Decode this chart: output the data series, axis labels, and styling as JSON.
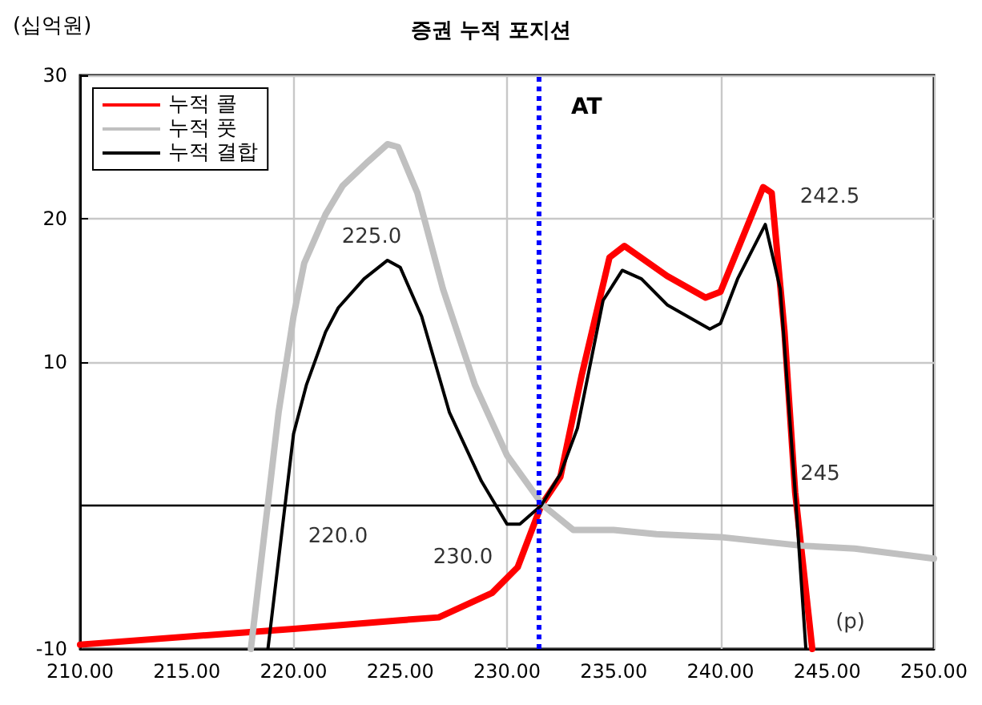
{
  "chart_data": {
    "type": "line",
    "title": "증권 누적 포지션",
    "xlabel": "(p)",
    "ylabel": "(십억원)",
    "series": [
      {
        "name": "누적 콜",
        "color": "#ff0000",
        "x": [
          210,
          220,
          225,
          226.8,
          229.3,
          230.5,
          231.6,
          232.5,
          233.5,
          234.8,
          235.5,
          237.5,
          239.3,
          240,
          242,
          242.4,
          243,
          243.5,
          244.3
        ],
        "values": [
          -9.7,
          -8.6,
          -8,
          -7.8,
          -6.1,
          -4.3,
          0,
          2,
          9.1,
          17.3,
          18.1,
          16,
          14.5,
          14.9,
          22.2,
          21.8,
          12.1,
          0.9,
          -10
        ]
      },
      {
        "name": "누적 풋",
        "color": "#c0c0c0",
        "x": [
          218,
          219.3,
          220,
          220.5,
          221.5,
          222.3,
          223.5,
          224.4,
          224.9,
          225.8,
          227,
          228.5,
          230,
          231.5,
          231.7,
          233.1,
          235,
          237,
          240,
          243.8,
          246.3,
          250
        ],
        "values": [
          -10,
          6.5,
          13.2,
          16.9,
          20.3,
          22.3,
          24,
          25.2,
          25,
          21.8,
          15.1,
          8.4,
          3.5,
          0.4,
          0,
          -1.7,
          -1.7,
          -2,
          -2.2,
          -2.8,
          -3,
          -3.7
        ]
      },
      {
        "name": "누적 결합",
        "color": "#000000",
        "x": [
          218.8,
          220,
          220.6,
          221.5,
          222.1,
          223.3,
          224.4,
          225,
          226,
          227.3,
          228.8,
          230,
          230.6,
          231.6,
          232.5,
          233.3,
          234.5,
          235.4,
          236.3,
          237.5,
          239.5,
          240,
          240.8,
          242.1,
          242.8,
          243.5,
          244
        ],
        "values": [
          -10,
          5,
          8.4,
          12.1,
          13.8,
          15.8,
          17.1,
          16.6,
          13.2,
          6.5,
          1.7,
          -1.3,
          -1.3,
          0,
          2.2,
          5.4,
          14.3,
          16.4,
          15.8,
          14,
          12.3,
          12.7,
          15.8,
          19.6,
          15.1,
          0.9,
          -10
        ]
      }
    ],
    "xlim": [
      210,
      250
    ],
    "ylim": [
      -10,
      30
    ],
    "xticks": [
      {
        "value": 210,
        "label": "210.00"
      },
      {
        "value": 215,
        "label": "215.00"
      },
      {
        "value": 220,
        "label": "220.00"
      },
      {
        "value": 225,
        "label": "225.00"
      },
      {
        "value": 230,
        "label": "230.00"
      },
      {
        "value": 235,
        "label": "235.00"
      },
      {
        "value": 240,
        "label": "240.00"
      },
      {
        "value": 245,
        "label": "245.00"
      },
      {
        "value": 250,
        "label": "250.00"
      }
    ],
    "yticks": [
      -10,
      {
        "value": 0,
        "label": null
      },
      10,
      20,
      30
    ],
    "ref_lines": [
      {
        "axis": "x",
        "value": 231.5,
        "label": "AT",
        "color": "#0000ff",
        "line_style": "dotted"
      },
      {
        "axis": "y",
        "value": 0,
        "label": null,
        "color": "#000000",
        "line_style": "solid"
      }
    ],
    "annotations": [
      "225.0",
      "220.0",
      "230.0",
      "242.5",
      "245"
    ],
    "grid": true,
    "legend": "top left",
    "marker": "none",
    "line_style": "solid"
  }
}
